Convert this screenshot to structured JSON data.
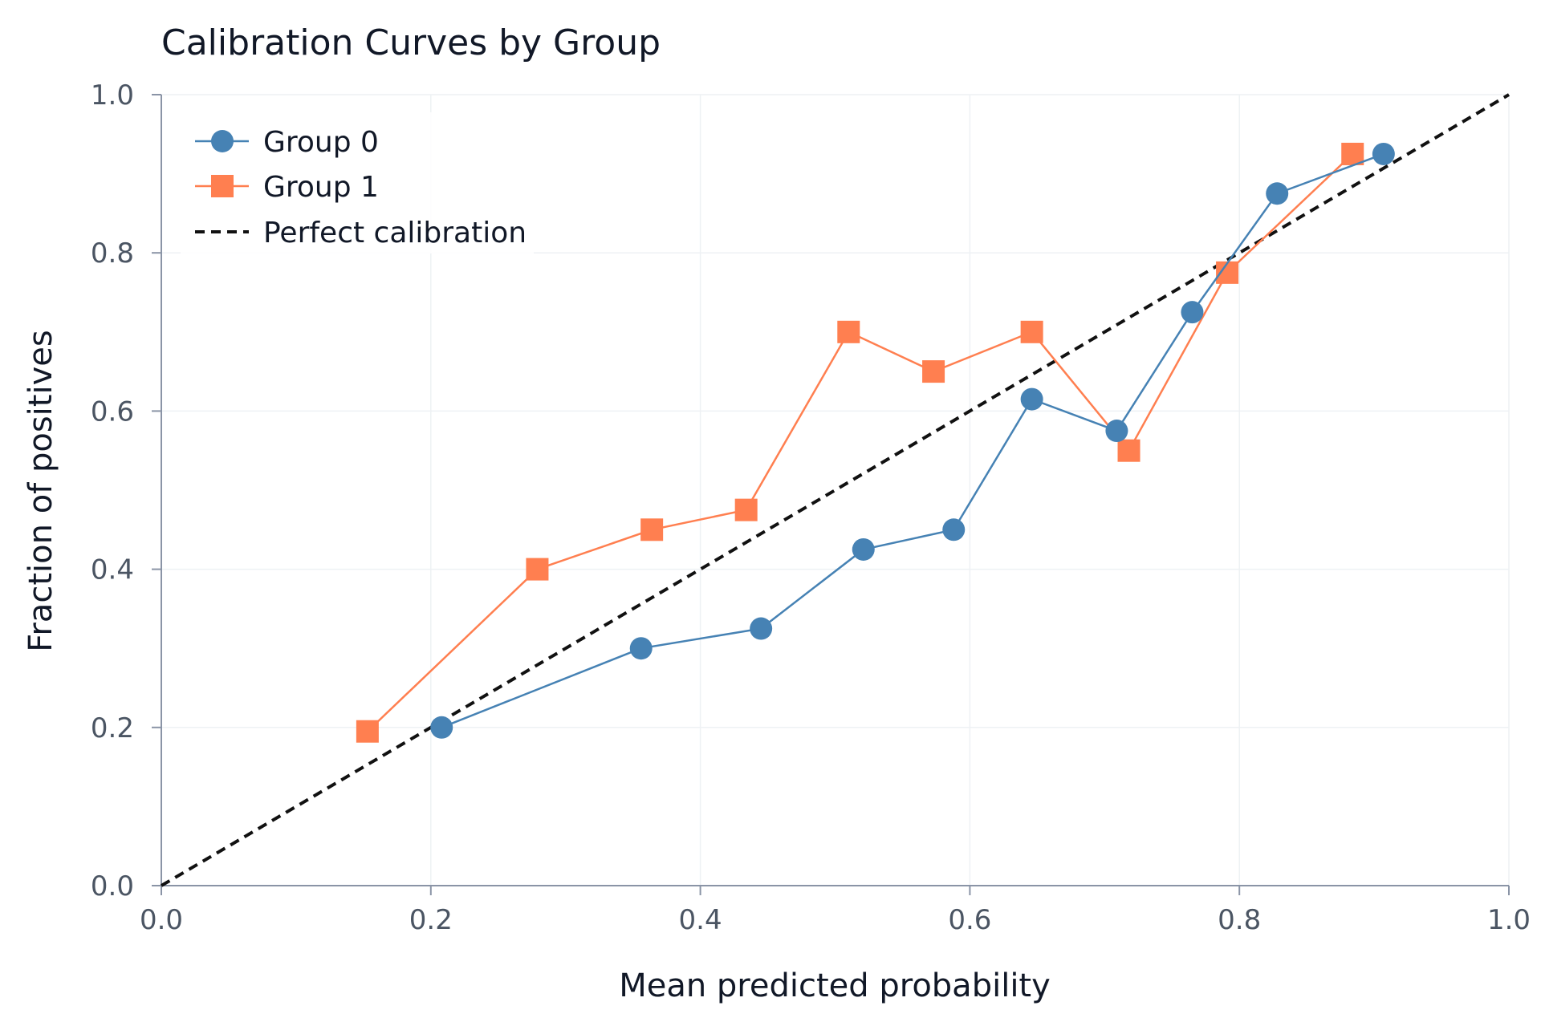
{
  "chart_data": {
    "type": "line",
    "title": "Calibration Curves by Group",
    "xlabel": "Mean predicted probability",
    "ylabel": "Fraction of positives",
    "xlim": [
      0.0,
      1.0
    ],
    "ylim": [
      0.0,
      1.0
    ],
    "xticks": [
      "0.0",
      "0.2",
      "0.4",
      "0.6",
      "0.8",
      "1.0"
    ],
    "yticks": [
      "0.0",
      "0.2",
      "0.4",
      "0.6",
      "0.8",
      "1.0"
    ],
    "grid": true,
    "legend_position": "top-left",
    "series": [
      {
        "name": "Group 0",
        "color": "#4682b4",
        "marker": "circle",
        "x": [
          0.208,
          0.356,
          0.445,
          0.521,
          0.588,
          0.646,
          0.709,
          0.765,
          0.828,
          0.907
        ],
        "y": [
          0.2,
          0.3,
          0.325,
          0.425,
          0.45,
          0.615,
          0.575,
          0.725,
          0.875,
          0.925
        ]
      },
      {
        "name": "Group 1",
        "color": "#ff7f50",
        "marker": "square",
        "x": [
          0.153,
          0.279,
          0.364,
          0.434,
          0.51,
          0.573,
          0.646,
          0.718,
          0.791,
          0.884
        ],
        "y": [
          0.195,
          0.4,
          0.45,
          0.475,
          0.7,
          0.65,
          0.7,
          0.55,
          0.775,
          0.925
        ]
      },
      {
        "name": "Perfect calibration",
        "color": "#111111",
        "style": "dashed",
        "x": [
          0.0,
          1.0
        ],
        "y": [
          0.0,
          1.0
        ]
      }
    ]
  }
}
